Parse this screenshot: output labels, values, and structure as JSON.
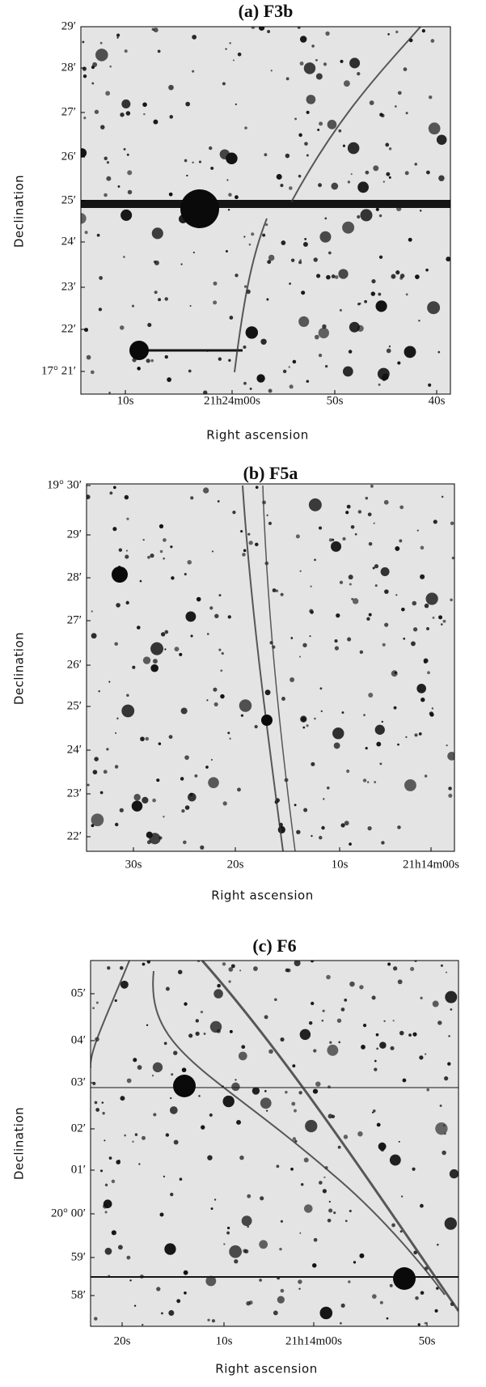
{
  "panels": [
    {
      "title": "(a) F3b",
      "y_label": "Declination",
      "x_label": "Right ascension",
      "y_tick_labels": [
        "29′",
        "28′",
        "27′",
        "26′",
        "25′",
        "24′",
        "23′",
        "22′",
        "17° 21′"
      ],
      "x_tick_labels": [
        "10s",
        "21h24m00s",
        "50s",
        "40s"
      ]
    },
    {
      "title": "(b) F5a",
      "y_label": "Declination",
      "x_label": "Right ascension",
      "y_tick_labels": [
        "19° 30′",
        "29′",
        "28′",
        "27′",
        "26′",
        "25′",
        "24′",
        "23′",
        "22′"
      ],
      "x_tick_labels": [
        "30s",
        "20s",
        "10s",
        "21h14m00s"
      ]
    },
    {
      "title": "(c) F6",
      "y_label": "Declination",
      "x_label": "Right ascension",
      "y_tick_labels": [
        "05′",
        "04′",
        "03′",
        "02′",
        "01′",
        "20° 00′",
        "59′",
        "58′"
      ],
      "x_tick_labels": [
        "20s",
        "10s",
        "21h14m00s",
        "50s"
      ]
    }
  ]
}
